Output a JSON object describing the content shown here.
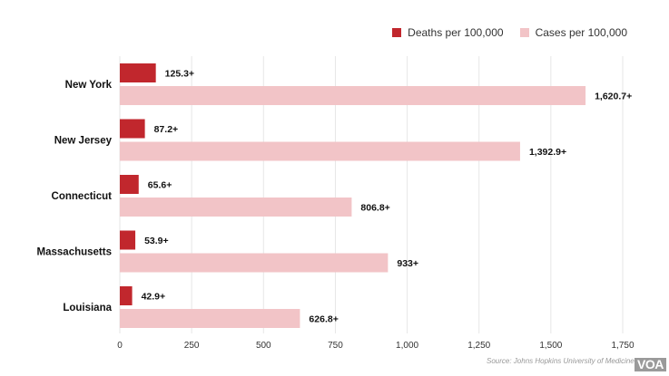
{
  "chart_data": {
    "type": "bar",
    "orientation": "horizontal",
    "categories": [
      "New York",
      "New Jersey",
      "Connecticut",
      "Massachusetts",
      "Louisiana"
    ],
    "series": [
      {
        "name": "Deaths per 100,000",
        "color": "#c1272d",
        "values": [
          125.3,
          87.2,
          65.6,
          53.9,
          42.9
        ],
        "labels": [
          "125.3+",
          "87.2+",
          "65.6+",
          "53.9+",
          "42.9+"
        ]
      },
      {
        "name": "Cases per 100,000",
        "color": "#f2c4c7",
        "values": [
          1620.7,
          1392.9,
          806.8,
          933,
          626.8
        ],
        "labels": [
          "1,620.7+",
          "1,392.9+",
          "806.8+",
          "933+",
          "626.8+"
        ]
      }
    ],
    "xlim": [
      0,
      1750
    ],
    "xticks": [
      0,
      250,
      500,
      750,
      1000,
      1250,
      1500,
      1750
    ],
    "xtick_labels": [
      "0",
      "250",
      "500",
      "750",
      "1,000",
      "1,250",
      "1,500",
      "1,750"
    ],
    "grid": true,
    "legend_position": "top-right"
  },
  "source": "Source: Johns Hopkins University of Medicine",
  "logo": "VOA"
}
